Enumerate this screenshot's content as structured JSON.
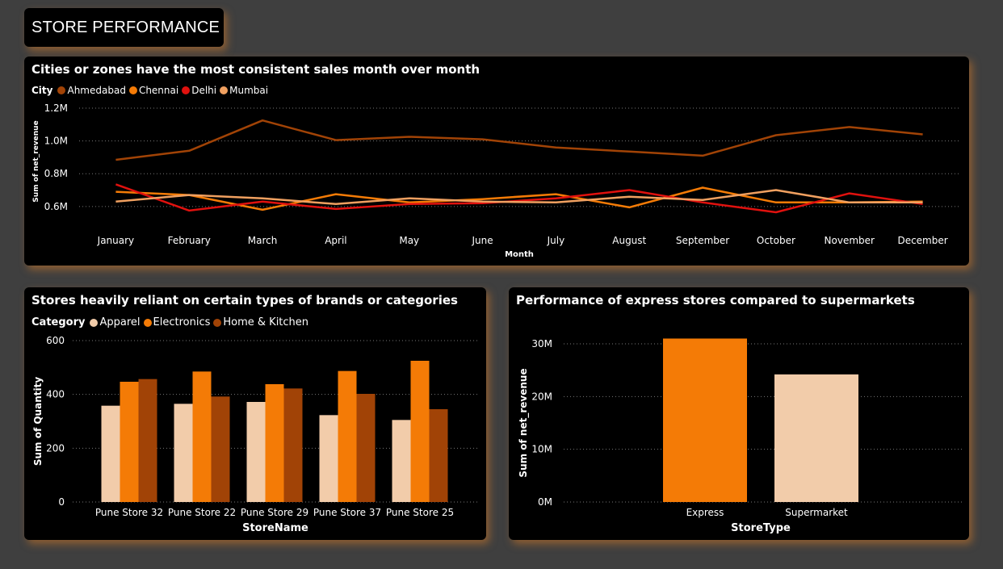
{
  "page": {
    "title": "STORE PERFORMANCE"
  },
  "chart_data": [
    {
      "type": "line",
      "title": "Cities or zones have the most consistent sales month over month",
      "legend_title": "City",
      "legend_position": "top-left",
      "xlabel": "Month",
      "ylabel": "Sum of net_revenue",
      "ylim": [
        550000,
        1200000
      ],
      "yticks": [
        600000,
        800000,
        1000000,
        1200000
      ],
      "ytick_labels": [
        "0.6M",
        "0.8M",
        "1.0M",
        "1.2M"
      ],
      "grid": true,
      "x": [
        "January",
        "February",
        "March",
        "April",
        "May",
        "June",
        "July",
        "August",
        "September",
        "October",
        "November",
        "December"
      ],
      "series": [
        {
          "name": "Ahmedabad",
          "color": "#a14306",
          "values": [
            885000,
            940000,
            1125000,
            1005000,
            1025000,
            1010000,
            960000,
            935000,
            910000,
            1035000,
            1085000,
            1040000
          ]
        },
        {
          "name": "Chennai",
          "color": "#f47b06",
          "values": [
            690000,
            670000,
            580000,
            675000,
            625000,
            645000,
            675000,
            595000,
            715000,
            625000,
            625000,
            630000
          ]
        },
        {
          "name": "Delhi",
          "color": "#e0110e",
          "values": [
            735000,
            575000,
            630000,
            585000,
            615000,
            620000,
            650000,
            700000,
            625000,
            565000,
            680000,
            615000
          ]
        },
        {
          "name": "Mumbai",
          "color": "#f0a060",
          "values": [
            630000,
            670000,
            650000,
            615000,
            650000,
            630000,
            625000,
            660000,
            640000,
            700000,
            625000,
            625000
          ]
        }
      ]
    },
    {
      "type": "bar",
      "title": "Stores heavily reliant on certain types of brands or categories",
      "legend_title": "Category",
      "legend_position": "top-left",
      "xlabel": "StoreName",
      "ylabel": "Sum of Quantity",
      "ylim": [
        0,
        600
      ],
      "yticks": [
        0,
        200,
        400,
        600
      ],
      "ytick_labels": [
        "0",
        "200",
        "400",
        "600"
      ],
      "grid": true,
      "categories": [
        "Pune Store 32",
        "Pune Store 22",
        "Pune Store 29",
        "Pune Store 37",
        "Pune Store 25"
      ],
      "series": [
        {
          "name": "Apparel",
          "color": "#f2ccaa",
          "values": [
            358,
            365,
            372,
            323,
            305
          ]
        },
        {
          "name": "Electronics",
          "color": "#f47b06",
          "values": [
            447,
            485,
            438,
            487,
            525
          ]
        },
        {
          "name": "Home & Kitchen",
          "color": "#a14306",
          "values": [
            457,
            392,
            422,
            402,
            345
          ]
        }
      ]
    },
    {
      "type": "bar",
      "title": "Performance of express stores compared to supermarkets",
      "xlabel": "StoreType",
      "ylabel": "Sum of net_revenue",
      "ylim": [
        0,
        30000000
      ],
      "yticks": [
        0,
        10000000,
        20000000,
        30000000
      ],
      "ytick_labels": [
        "0M",
        "10M",
        "20M",
        "30M"
      ],
      "grid": true,
      "categories": [
        "Express",
        "Supermarket"
      ],
      "colors": [
        "#f47b06",
        "#f2ccaa"
      ],
      "values": [
        31000000,
        24200000
      ]
    }
  ]
}
